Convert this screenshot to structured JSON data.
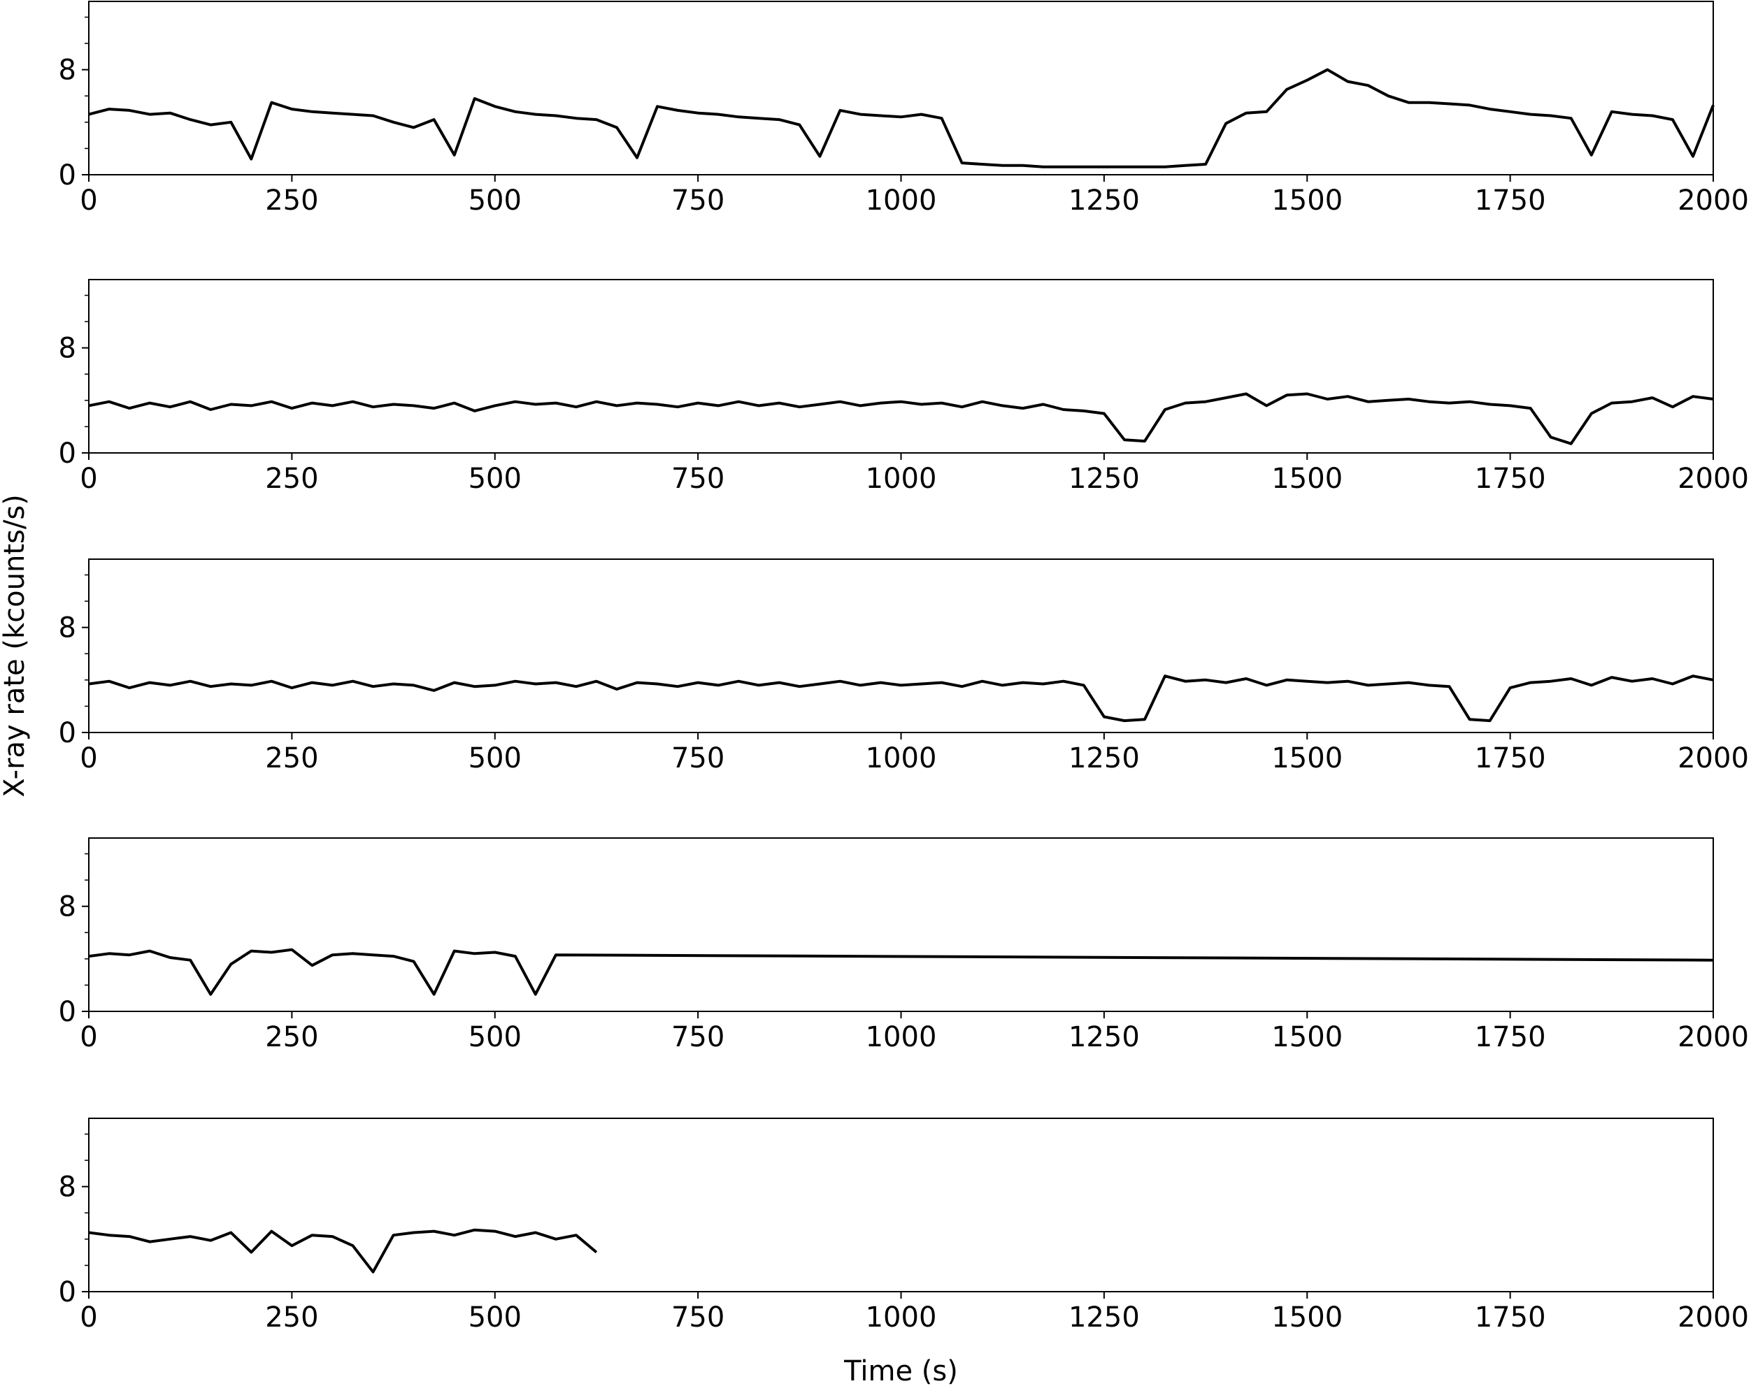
{
  "chart_data": [
    {
      "type": "line",
      "color": "#000000",
      "xlim": [
        0,
        2000
      ],
      "ylim": [
        0,
        13.2
      ],
      "xticks": [
        0,
        250,
        500,
        750,
        1000,
        1250,
        1500,
        1750,
        2000
      ],
      "yticks": [
        0,
        8
      ],
      "yminorticks": [
        2,
        4,
        6,
        10,
        12
      ],
      "x": [
        0,
        25,
        50,
        75,
        100,
        125,
        150,
        175,
        200,
        225,
        250,
        275,
        300,
        325,
        350,
        375,
        400,
        425,
        450,
        475,
        500,
        525,
        550,
        575,
        600,
        625,
        650,
        675,
        700,
        725,
        750,
        775,
        800,
        825,
        850,
        875,
        900,
        925,
        950,
        975,
        1000,
        1025,
        1050,
        1075,
        1100,
        1125,
        1150,
        1175,
        1200,
        1225,
        1250,
        1275,
        1300,
        1325,
        1350,
        1375,
        1400,
        1425,
        1450,
        1475,
        1500,
        1525,
        1550,
        1575,
        1600,
        1625,
        1650,
        1675,
        1700,
        1725,
        1750,
        1775,
        1800,
        1825,
        1850,
        1875,
        1900,
        1925,
        1950,
        1975,
        2000
      ],
      "values": [
        4.6,
        5.0,
        4.9,
        4.6,
        4.7,
        4.2,
        3.8,
        4.0,
        1.2,
        5.5,
        5.0,
        4.8,
        4.7,
        4.6,
        4.5,
        4.0,
        3.6,
        4.2,
        1.5,
        5.8,
        5.2,
        4.8,
        4.6,
        4.5,
        4.3,
        4.2,
        3.6,
        1.3,
        5.2,
        4.9,
        4.7,
        4.6,
        4.4,
        4.3,
        4.2,
        3.8,
        1.4,
        4.9,
        4.6,
        4.5,
        4.4,
        4.6,
        4.3,
        0.9,
        0.8,
        0.7,
        0.7,
        0.6,
        0.6,
        0.6,
        0.6,
        0.6,
        0.6,
        0.6,
        0.7,
        0.8,
        3.9,
        4.7,
        4.8,
        6.5,
        7.2,
        8.0,
        7.1,
        6.8,
        6.0,
        5.5,
        5.5,
        5.4,
        5.3,
        5.0,
        4.8,
        4.6,
        4.5,
        4.3,
        1.5,
        4.8,
        4.6,
        4.5,
        4.2,
        1.4,
        5.3
      ]
    },
    {
      "type": "line",
      "color": "#000000",
      "xlim": [
        0,
        2000
      ],
      "ylim": [
        0,
        13.2
      ],
      "xticks": [
        0,
        250,
        500,
        750,
        1000,
        1250,
        1500,
        1750,
        2000
      ],
      "yticks": [
        0,
        8
      ],
      "yminorticks": [
        2,
        4,
        6,
        10,
        12
      ],
      "x": [
        0,
        25,
        50,
        75,
        100,
        125,
        150,
        175,
        200,
        225,
        250,
        275,
        300,
        325,
        350,
        375,
        400,
        425,
        450,
        475,
        500,
        525,
        550,
        575,
        600,
        625,
        650,
        675,
        700,
        725,
        750,
        775,
        800,
        825,
        850,
        875,
        900,
        925,
        950,
        975,
        1000,
        1025,
        1050,
        1075,
        1100,
        1125,
        1150,
        1175,
        1200,
        1225,
        1250,
        1275,
        1300,
        1325,
        1350,
        1375,
        1400,
        1425,
        1450,
        1475,
        1500,
        1525,
        1550,
        1575,
        1600,
        1625,
        1650,
        1675,
        1700,
        1725,
        1750,
        1775,
        1800,
        1825,
        1850,
        1875,
        1900,
        1925,
        1950,
        1975,
        2000
      ],
      "values": [
        3.6,
        3.9,
        3.4,
        3.8,
        3.5,
        3.9,
        3.3,
        3.7,
        3.6,
        3.9,
        3.4,
        3.8,
        3.6,
        3.9,
        3.5,
        3.7,
        3.6,
        3.4,
        3.8,
        3.2,
        3.6,
        3.9,
        3.7,
        3.8,
        3.5,
        3.9,
        3.6,
        3.8,
        3.7,
        3.5,
        3.8,
        3.6,
        3.9,
        3.6,
        3.8,
        3.5,
        3.7,
        3.9,
        3.6,
        3.8,
        3.9,
        3.7,
        3.8,
        3.5,
        3.9,
        3.6,
        3.4,
        3.7,
        3.3,
        3.2,
        3.0,
        1.0,
        0.9,
        3.3,
        3.8,
        3.9,
        4.2,
        4.5,
        3.6,
        4.4,
        4.5,
        4.1,
        4.3,
        3.9,
        4.0,
        4.1,
        3.9,
        3.8,
        3.9,
        3.7,
        3.6,
        3.4,
        1.2,
        0.7,
        3.0,
        3.8,
        3.9,
        4.2,
        3.5,
        4.3,
        4.1
      ]
    },
    {
      "type": "line",
      "color": "#000000",
      "xlim": [
        0,
        2000
      ],
      "ylim": [
        0,
        13.2
      ],
      "xticks": [
        0,
        250,
        500,
        750,
        1000,
        1250,
        1500,
        1750,
        2000
      ],
      "yticks": [
        0,
        8
      ],
      "yminorticks": [
        2,
        4,
        6,
        10,
        12
      ],
      "x": [
        0,
        25,
        50,
        75,
        100,
        125,
        150,
        175,
        200,
        225,
        250,
        275,
        300,
        325,
        350,
        375,
        400,
        425,
        450,
        475,
        500,
        525,
        550,
        575,
        600,
        625,
        650,
        675,
        700,
        725,
        750,
        775,
        800,
        825,
        850,
        875,
        900,
        925,
        950,
        975,
        1000,
        1025,
        1050,
        1075,
        1100,
        1125,
        1150,
        1175,
        1200,
        1225,
        1250,
        1275,
        1300,
        1325,
        1350,
        1375,
        1400,
        1425,
        1450,
        1475,
        1500,
        1525,
        1550,
        1575,
        1600,
        1625,
        1650,
        1675,
        1700,
        1725,
        1750,
        1775,
        1800,
        1825,
        1850,
        1875,
        1900,
        1925,
        1950,
        1975,
        2000
      ],
      "values": [
        3.7,
        3.9,
        3.4,
        3.8,
        3.6,
        3.9,
        3.5,
        3.7,
        3.6,
        3.9,
        3.4,
        3.8,
        3.6,
        3.9,
        3.5,
        3.7,
        3.6,
        3.2,
        3.8,
        3.5,
        3.6,
        3.9,
        3.7,
        3.8,
        3.5,
        3.9,
        3.3,
        3.8,
        3.7,
        3.5,
        3.8,
        3.6,
        3.9,
        3.6,
        3.8,
        3.5,
        3.7,
        3.9,
        3.6,
        3.8,
        3.6,
        3.7,
        3.8,
        3.5,
        3.9,
        3.6,
        3.8,
        3.7,
        3.9,
        3.6,
        1.2,
        0.9,
        1.0,
        4.3,
        3.9,
        4.0,
        3.8,
        4.1,
        3.6,
        4.0,
        3.9,
        3.8,
        3.9,
        3.6,
        3.7,
        3.8,
        3.6,
        3.5,
        1.0,
        0.9,
        3.4,
        3.8,
        3.9,
        4.1,
        3.6,
        4.2,
        3.9,
        4.1,
        3.7,
        4.3,
        4.0
      ]
    },
    {
      "type": "line",
      "color": "#000000",
      "xlim": [
        0,
        2000
      ],
      "ylim": [
        0,
        13.2
      ],
      "xticks": [
        0,
        250,
        500,
        750,
        1000,
        1250,
        1500,
        1750,
        2000
      ],
      "yticks": [
        0,
        8
      ],
      "yminorticks": [
        2,
        4,
        6,
        10,
        12
      ],
      "x": [
        0,
        25,
        50,
        75,
        100,
        125,
        150,
        175,
        200,
        225,
        250,
        275,
        300,
        325,
        350,
        375,
        400,
        425,
        450,
        475,
        500,
        525,
        550,
        575,
        2000
      ],
      "values": [
        4.2,
        4.4,
        4.3,
        4.6,
        4.1,
        3.9,
        1.3,
        3.6,
        4.6,
        4.5,
        4.7,
        3.5,
        4.3,
        4.4,
        4.3,
        4.2,
        3.8,
        1.3,
        4.6,
        4.4,
        4.5,
        4.2,
        1.3,
        4.3,
        3.9
      ]
    },
    {
      "type": "line",
      "color": "#000000",
      "xlim": [
        0,
        2000
      ],
      "ylim": [
        0,
        13.2
      ],
      "xticks": [
        0,
        250,
        500,
        750,
        1000,
        1250,
        1500,
        1750,
        2000
      ],
      "yticks": [
        0,
        8
      ],
      "yminorticks": [
        2,
        4,
        6,
        10,
        12
      ],
      "x": [
        0,
        25,
        50,
        75,
        100,
        125,
        150,
        175,
        200,
        225,
        250,
        275,
        300,
        325,
        350,
        375,
        400,
        425,
        450,
        475,
        500,
        525,
        550,
        575,
        600,
        625
      ],
      "values": [
        4.5,
        4.3,
        4.2,
        3.8,
        4.0,
        4.2,
        3.9,
        4.5,
        3.0,
        4.6,
        3.5,
        4.3,
        4.2,
        3.5,
        1.5,
        4.3,
        4.5,
        4.6,
        4.3,
        4.7,
        4.6,
        4.2,
        4.5,
        4.0,
        4.3,
        3.0
      ],
      "xlabel": "Time (s)",
      "ylabel": "X-ray rate (kcounts/s)"
    }
  ]
}
